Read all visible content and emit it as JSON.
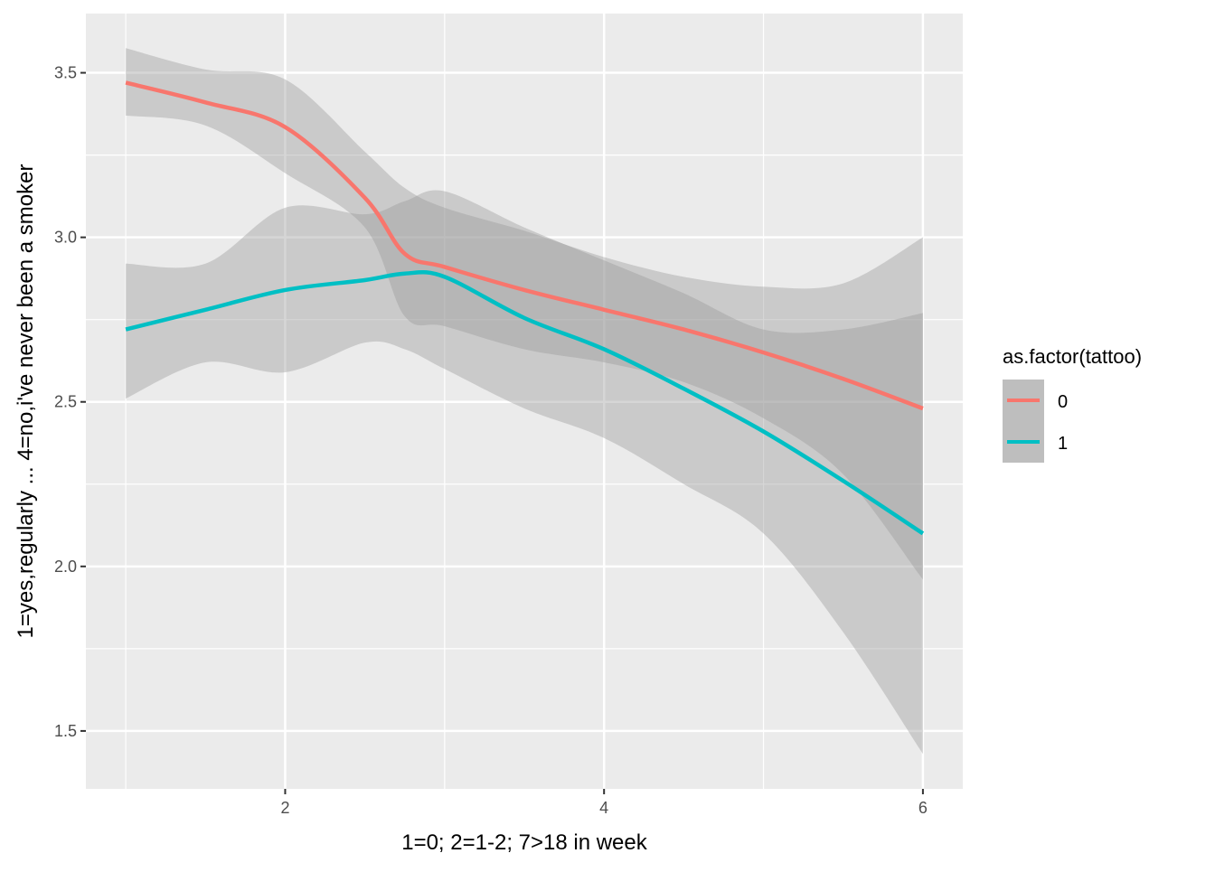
{
  "chart_data": {
    "type": "line",
    "title": "",
    "xlabel": "1=0; 2=1-2; 7>18 in week",
    "ylabel": "1=yes,regularly ... 4=no,i've never been a smoker",
    "xlim": [
      0.75,
      6.25
    ],
    "ylim": [
      1.324,
      3.68
    ],
    "x_ticks": [
      2,
      4,
      6
    ],
    "x_tick_labels": [
      "2",
      "4",
      "6"
    ],
    "y_ticks": [
      1.5,
      2.0,
      2.5,
      3.0,
      3.5
    ],
    "y_tick_labels": [
      "1.5",
      "2.0",
      "2.5",
      "3.0",
      "3.5"
    ],
    "grid": true,
    "legend": {
      "title": "as.factor(tattoo)",
      "placement": "right"
    },
    "series": [
      {
        "name": "0",
        "color": "#F8766D",
        "x": [
          1,
          1.5,
          2,
          2.5,
          2.75,
          3,
          3.5,
          4,
          4.5,
          5,
          5.5,
          6
        ],
        "y": [
          3.47,
          3.41,
          3.335,
          3.12,
          2.95,
          2.91,
          2.84,
          2.78,
          2.72,
          2.65,
          2.57,
          2.48
        ],
        "lower": [
          3.37,
          3.34,
          3.195,
          3.03,
          2.76,
          2.73,
          2.66,
          2.62,
          2.56,
          2.45,
          2.28,
          1.96
        ],
        "upper": [
          3.575,
          3.51,
          3.48,
          3.26,
          3.15,
          3.09,
          3.02,
          2.94,
          2.88,
          2.85,
          2.86,
          3.0
        ]
      },
      {
        "name": "1",
        "color": "#00BFC4",
        "x": [
          1,
          1.5,
          2,
          2.5,
          2.75,
          3,
          3.5,
          4,
          4.5,
          5,
          5.5,
          6
        ],
        "y": [
          2.72,
          2.78,
          2.84,
          2.87,
          2.89,
          2.88,
          2.755,
          2.66,
          2.54,
          2.41,
          2.26,
          2.1
        ],
        "lower": [
          2.51,
          2.62,
          2.59,
          2.68,
          2.66,
          2.6,
          2.48,
          2.39,
          2.25,
          2.1,
          1.8,
          1.43
        ],
        "upper": [
          2.92,
          2.92,
          3.09,
          3.07,
          3.11,
          3.14,
          3.03,
          2.93,
          2.83,
          2.72,
          2.72,
          2.77
        ]
      }
    ]
  }
}
